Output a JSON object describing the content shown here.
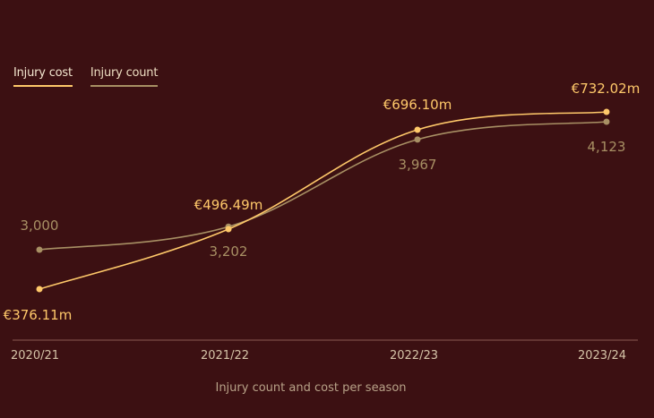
{
  "legend": {
    "cost_label": "Injury cost",
    "count_label": "Injury count"
  },
  "chart_data": {
    "type": "line",
    "title": "",
    "xlabel": "Injury count and cost per season",
    "ylabel": "",
    "categories": [
      "2020/21",
      "2021/22",
      "2022/23",
      "2023/24"
    ],
    "series": [
      {
        "name": "Injury cost",
        "values": [
          376.11,
          496.49,
          696.1,
          732.02
        ],
        "labels": [
          "€376.11m",
          "€496.49m",
          "€696.10m",
          "€732.02m"
        ],
        "unit": "€m"
      },
      {
        "name": "Injury count",
        "values": [
          3000,
          3202,
          3967,
          4123
        ],
        "labels": [
          "3,000",
          "3,202",
          "3,967",
          "4,123"
        ]
      }
    ],
    "grid": false,
    "legend_position": "top-left"
  },
  "colors": {
    "background": "#3c1012",
    "cost": "#ffc96a",
    "count": "#a89064",
    "cost_text": "#ffc96a",
    "count_text": "#a89064",
    "axis_text": "#d6c4a8"
  }
}
